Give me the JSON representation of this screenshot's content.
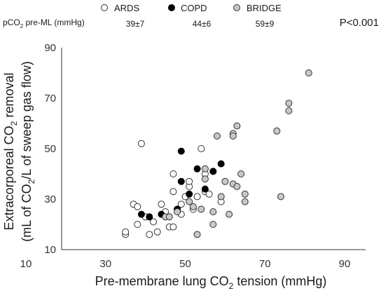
{
  "chart_data": {
    "type": "scatter",
    "xlabel": {
      "text": "Pre-membrane lung CO",
      "sub": "2",
      "after": " tension (mmHg)"
    },
    "ylabel": {
      "line1": {
        "text": "Extracorporeal CO",
        "sub": "2",
        "after": " removal"
      },
      "line2": {
        "text": "(mL of CO",
        "sub": "2",
        "after": "/L of sweep gas flow)"
      }
    },
    "xlim": [
      10,
      90
    ],
    "ylim": [
      10,
      90
    ],
    "xticks": [
      10,
      30,
      50,
      70,
      90
    ],
    "yticks": [
      10,
      30,
      50,
      70,
      90
    ],
    "pvalue": "P<0.001",
    "summary_row": {
      "label": {
        "text": "pCO",
        "sub": "2",
        "after": " pre-ML (mmHg)"
      },
      "values": [
        "39±7",
        "44±6",
        "59±9"
      ]
    },
    "series": [
      {
        "name": "ARDS",
        "style": "open",
        "points": [
          [
            35,
            16
          ],
          [
            35,
            17
          ],
          [
            37,
            28
          ],
          [
            38,
            27
          ],
          [
            38,
            20
          ],
          [
            39,
            52
          ],
          [
            40,
            23
          ],
          [
            41,
            16
          ],
          [
            42,
            21
          ],
          [
            43,
            17
          ],
          [
            44,
            28
          ],
          [
            45,
            25
          ],
          [
            46,
            19
          ],
          [
            47,
            19
          ],
          [
            47,
            33
          ],
          [
            47,
            40
          ],
          [
            48,
            26
          ],
          [
            49,
            24
          ],
          [
            49,
            28
          ],
          [
            50,
            31
          ],
          [
            51,
            35
          ],
          [
            51,
            37
          ],
          [
            52,
            26
          ],
          [
            53,
            31
          ],
          [
            54,
            50
          ],
          [
            55,
            33
          ],
          [
            55,
            40
          ],
          [
            56,
            32
          ],
          [
            57,
            41
          ],
          [
            59,
            29
          ]
        ]
      },
      {
        "name": "COPD",
        "style": "filled",
        "points": [
          [
            39,
            24
          ],
          [
            41,
            23
          ],
          [
            44,
            24
          ],
          [
            48,
            26
          ],
          [
            49,
            37
          ],
          [
            49,
            49
          ],
          [
            51,
            32
          ],
          [
            53,
            42
          ],
          [
            55,
            34
          ],
          [
            57,
            41
          ],
          [
            59,
            44
          ]
        ]
      },
      {
        "name": "BRIDGE",
        "style": "grey",
        "points": [
          [
            45,
            23
          ],
          [
            46,
            23
          ],
          [
            48,
            25
          ],
          [
            51,
            29
          ],
          [
            52,
            27
          ],
          [
            53,
            16
          ],
          [
            54,
            26
          ],
          [
            55,
            42
          ],
          [
            55,
            38
          ],
          [
            57,
            25
          ],
          [
            57,
            20
          ],
          [
            58,
            55
          ],
          [
            59,
            31
          ],
          [
            60,
            37
          ],
          [
            61,
            24
          ],
          [
            62,
            56
          ],
          [
            62,
            55
          ],
          [
            62,
            36
          ],
          [
            63,
            35
          ],
          [
            63,
            59
          ],
          [
            64,
            40
          ],
          [
            65,
            29
          ],
          [
            65,
            32
          ],
          [
            73,
            57
          ],
          [
            74,
            31
          ],
          [
            76,
            65
          ],
          [
            76,
            68
          ],
          [
            81,
            80
          ]
        ]
      }
    ],
    "colors": {
      "open": "#ffffff",
      "filled": "#000000",
      "grey": "#c8c8c8",
      "outline": "#333333"
    }
  }
}
